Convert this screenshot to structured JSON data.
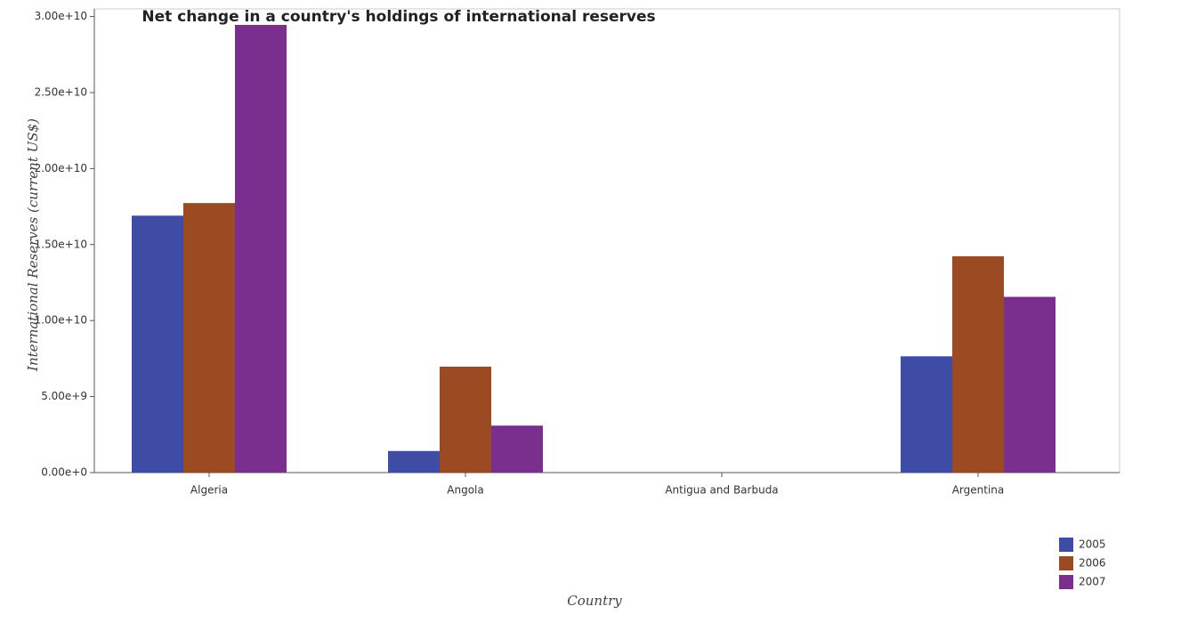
{
  "chart_data": {
    "type": "bar",
    "title": "Net change in a country's holdings of international reserves",
    "xlabel": "Country",
    "ylabel": "International Reserves (current US$)",
    "categories": [
      "Algeria",
      "Angola",
      "Antigua and Barbuda",
      "Argentina"
    ],
    "series": [
      {
        "name": "2005",
        "color": "#3f4ca6",
        "values": [
          16900000000,
          1420000000,
          0,
          7650000000
        ]
      },
      {
        "name": "2006",
        "color": "#9b4a22",
        "values": [
          17730000000,
          6970000000,
          0,
          14230000000
        ]
      },
      {
        "name": "2007",
        "color": "#7a2e8e",
        "values": [
          29450000000,
          3090000000,
          0,
          11560000000
        ]
      }
    ],
    "ylim": [
      0,
      30500000000
    ],
    "yticks": [
      {
        "value": 0,
        "label": "0.00e+0"
      },
      {
        "value": 5000000000,
        "label": "5.00e+9"
      },
      {
        "value": 10000000000,
        "label": "1.00e+10"
      },
      {
        "value": 15000000000,
        "label": "1.50e+10"
      },
      {
        "value": 20000000000,
        "label": "2.00e+10"
      },
      {
        "value": 25000000000,
        "label": "2.50e+10"
      },
      {
        "value": 30000000000,
        "label": "3.00e+10"
      }
    ],
    "legend": "lower right"
  }
}
